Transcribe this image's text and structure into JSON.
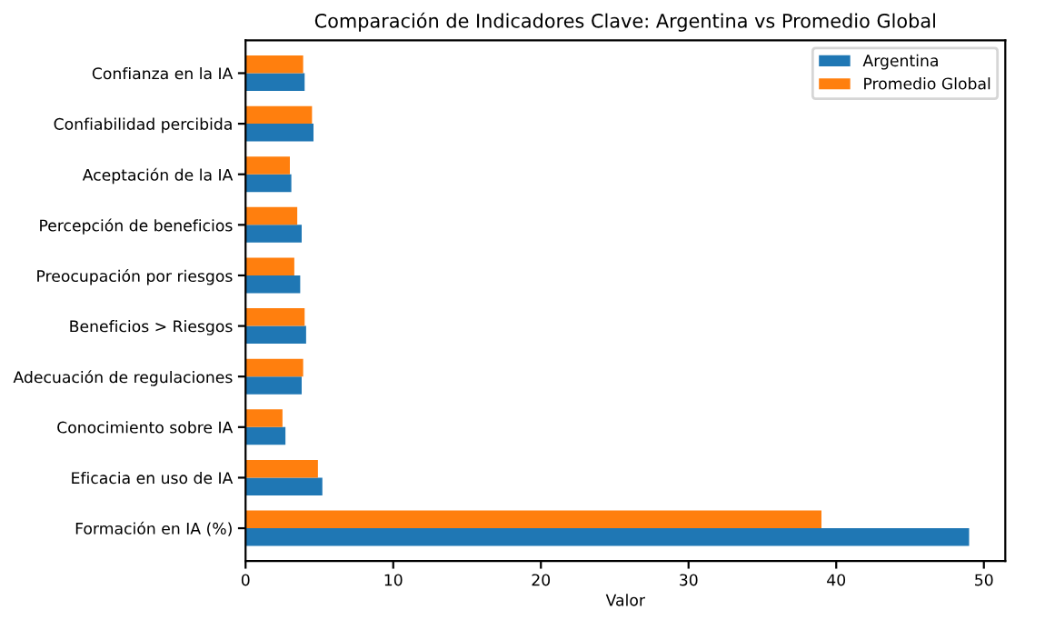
{
  "chart_data": {
    "type": "bar",
    "orientation": "horizontal",
    "title": "Comparación de Indicadores Clave: Argentina vs Promedio Global",
    "xlabel": "Valor",
    "categories": [
      "Confianza en la IA",
      "Confiabilidad percibida",
      "Aceptación de la IA",
      "Percepción de beneficios",
      "Preocupación por riesgos",
      "Beneficios > Riesgos",
      "Adecuación de regulaciones",
      "Conocimiento sobre IA",
      "Eficacia en uso de IA",
      "Formación en IA (%)"
    ],
    "series": [
      {
        "name": "Argentina",
        "color": "#1f77b4",
        "values": [
          4.0,
          4.6,
          3.1,
          3.8,
          3.7,
          4.1,
          3.8,
          2.7,
          5.2,
          49
        ]
      },
      {
        "name": "Promedio Global",
        "color": "#ff7f0e",
        "values": [
          3.9,
          4.5,
          3.0,
          3.5,
          3.3,
          4.0,
          3.9,
          2.5,
          4.9,
          39
        ]
      }
    ],
    "xlim": [
      0,
      51.45
    ],
    "xticks": [
      0,
      10,
      20,
      30,
      40,
      50
    ],
    "legend": "top right",
    "grid": false
  }
}
